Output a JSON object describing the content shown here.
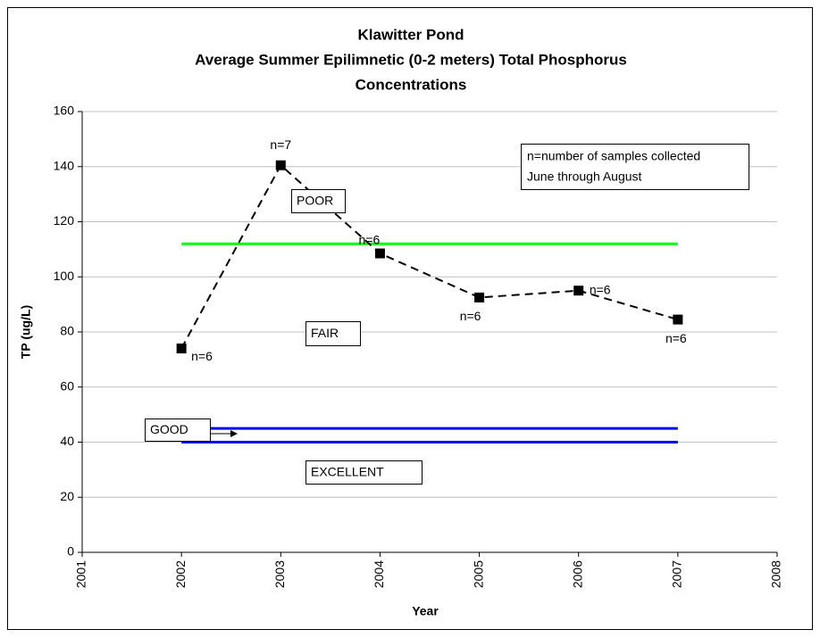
{
  "chart_data": {
    "type": "line",
    "title": [
      "Klawitter Pond",
      "Average Summer Epilimnetic (0-2 meters) Total Phosphorus",
      "Concentrations"
    ],
    "x_label": "Year",
    "y_label": "TP (ug/L)",
    "x": [
      2002,
      2003,
      2004,
      2005,
      2006,
      2007
    ],
    "series": [
      {
        "color": "#000000",
        "values": [
          74,
          140.5,
          108.5,
          92.5,
          95,
          84.5
        ]
      }
    ],
    "point_labels": [
      "n=6",
      "n=7",
      "n=6",
      "n=6",
      "n=6",
      "n=6"
    ],
    "reference_lines": [
      {
        "value": 112,
        "color": "#00ff00"
      },
      {
        "value": 45,
        "color": "#0000ff"
      },
      {
        "value": 40,
        "color": "#0000ff"
      }
    ],
    "zone_labels": [
      "POOR",
      "FAIR",
      "GOOD",
      "EXCELLENT"
    ],
    "note": [
      "n=number of samples collected",
      "June through August"
    ],
    "xlim": [
      2001,
      2008
    ],
    "xticks": [
      2001,
      2002,
      2003,
      2004,
      2005,
      2006,
      2007,
      2008
    ],
    "ylim": [
      0,
      160
    ],
    "yticks": [
      0,
      20,
      40,
      60,
      80,
      100,
      120,
      140,
      160
    ],
    "grid": true
  }
}
